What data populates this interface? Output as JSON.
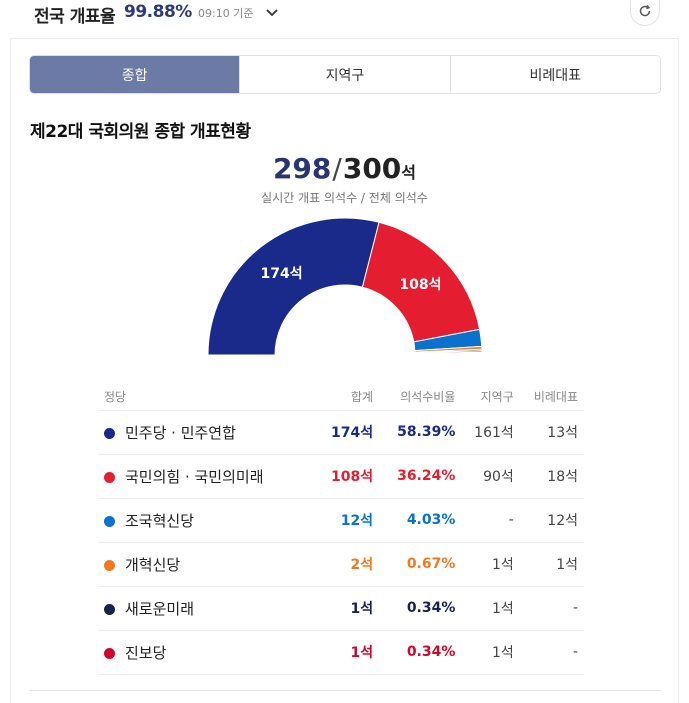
{
  "header": {
    "title": "전국 개표율",
    "rate": "99.88%",
    "time": "09:10 기준"
  },
  "tabs": [
    "종합",
    "지역구",
    "비례대표"
  ],
  "heading": "제22대 국회의원 종합 개표현황",
  "counter": {
    "counted": "298",
    "separator": "/",
    "total": "300",
    "unit": "석",
    "caption": "실시간 개표 의석수 / 전체 의석수"
  },
  "table_headers": [
    "정당",
    "합계",
    "의석수비율",
    "지역구",
    "비례대표"
  ],
  "colors": {
    "minju": "#1a2a8a",
    "ppp": "#e41e30",
    "rebuild": "#0a71cc",
    "reform": "#f07a20",
    "future": "#16234f",
    "progressive": "#d1062c",
    "tab_active": "#6c7aa6"
  },
  "chart_data": {
    "type": "pie",
    "variant": "semicircle",
    "total_seats": 300,
    "counted_seats": 298,
    "segment_labels": [
      "174석",
      "108석"
    ],
    "series": [
      {
        "name": "민주당 · 민주연합",
        "seats": 174,
        "seats_label": "174석",
        "pct": "58.39%",
        "district": "161석",
        "proportional": "13석",
        "color": "#1a2a8a"
      },
      {
        "name": "국민의힘 · 국민의미래",
        "seats": 108,
        "seats_label": "108석",
        "pct": "36.24%",
        "district": "90석",
        "proportional": "18석",
        "color": "#e41e30"
      },
      {
        "name": "조국혁신당",
        "seats": 12,
        "seats_label": "12석",
        "pct": "4.03%",
        "district": "-",
        "proportional": "12석",
        "color": "#0a71cc"
      },
      {
        "name": "개혁신당",
        "seats": 2,
        "seats_label": "2석",
        "pct": "0.67%",
        "district": "1석",
        "proportional": "1석",
        "color": "#f07a20"
      },
      {
        "name": "새로운미래",
        "seats": 1,
        "seats_label": "1석",
        "pct": "0.34%",
        "district": "1석",
        "proportional": "-",
        "color": "#16234f"
      },
      {
        "name": "진보당",
        "seats": 1,
        "seats_label": "1석",
        "pct": "0.34%",
        "district": "1석",
        "proportional": "-",
        "color": "#d1062c"
      }
    ]
  }
}
